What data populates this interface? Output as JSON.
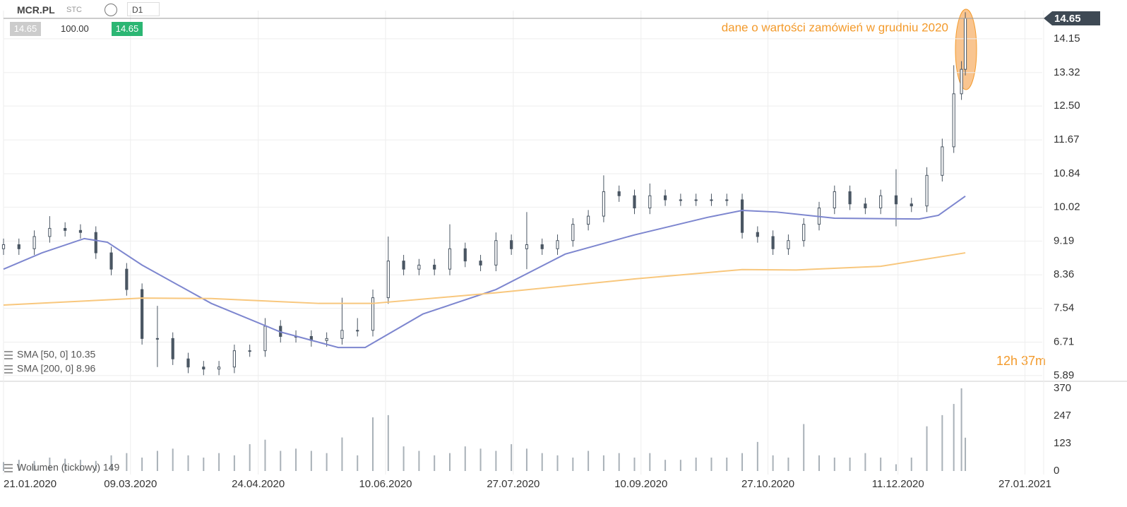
{
  "toolbar": {
    "symbol": "MCR.PL",
    "market": "STC",
    "timeframe": "D1",
    "bid": "14.65",
    "lot": "100.00",
    "ask": "14.65"
  },
  "countdown": "12h 37m",
  "chart_data": [
    {
      "type": "candlestick",
      "annotation": "dane o wartości zamówień w grudniu 2020",
      "last_price": 14.65,
      "up_color": "#ffffff",
      "down_color": "#4a5663",
      "x": [
        0,
        4,
        8,
        12,
        16,
        20,
        24,
        28,
        32,
        36,
        40,
        44,
        48,
        52,
        56,
        60,
        64,
        68,
        72,
        76,
        80,
        84,
        88,
        92,
        96,
        100,
        104,
        108,
        112,
        116,
        120,
        124,
        128,
        132,
        136,
        140,
        144,
        148,
        152,
        156,
        160,
        164,
        168,
        172,
        176,
        180,
        184,
        188,
        192,
        196,
        200,
        204,
        208,
        212,
        216,
        220,
        224,
        228,
        232,
        236,
        240,
        244,
        247,
        249,
        250
      ],
      "open": [
        9.0,
        9.1,
        9.0,
        9.3,
        9.5,
        9.45,
        9.4,
        8.9,
        8.5,
        8.0,
        6.8,
        6.8,
        6.3,
        6.1,
        6.05,
        6.1,
        6.5,
        6.5,
        7.1,
        6.85,
        6.85,
        6.75,
        6.8,
        7.0,
        7.0,
        7.8,
        8.7,
        8.5,
        8.6,
        8.5,
        9.0,
        8.7,
        8.6,
        9.2,
        9.0,
        9.1,
        9.0,
        9.2,
        9.6,
        9.8,
        10.4,
        10.3,
        10.0,
        10.3,
        10.2,
        10.2,
        10.2,
        10.2,
        10.2,
        9.4,
        9.3,
        9.0,
        9.2,
        9.6,
        10.0,
        10.4,
        10.1,
        10.0,
        10.3,
        10.1,
        10.05,
        10.8,
        11.5,
        12.8,
        13.4
      ],
      "high": [
        9.25,
        9.25,
        9.45,
        9.8,
        9.65,
        9.6,
        9.55,
        9.05,
        8.65,
        8.15,
        7.6,
        6.95,
        6.45,
        6.25,
        6.25,
        6.65,
        6.65,
        7.3,
        7.25,
        7.0,
        7.0,
        6.95,
        7.8,
        7.3,
        8.0,
        9.3,
        8.85,
        8.75,
        8.75,
        9.6,
        9.15,
        8.85,
        9.4,
        9.35,
        9.9,
        9.25,
        9.35,
        9.75,
        9.95,
        10.8,
        10.55,
        10.45,
        10.6,
        10.45,
        10.35,
        10.35,
        10.35,
        10.35,
        10.35,
        9.55,
        9.45,
        9.35,
        9.75,
        10.15,
        10.55,
        10.55,
        10.25,
        10.45,
        10.95,
        10.25,
        11.0,
        11.7,
        13.5,
        13.6,
        14.8
      ],
      "low": [
        8.85,
        8.85,
        8.85,
        9.15,
        9.3,
        9.25,
        8.75,
        8.35,
        7.85,
        6.65,
        6.1,
        6.15,
        5.95,
        5.9,
        5.9,
        5.95,
        6.35,
        6.35,
        6.7,
        6.7,
        6.6,
        6.6,
        6.65,
        6.85,
        6.85,
        7.65,
        8.35,
        8.35,
        8.35,
        8.35,
        8.55,
        8.45,
        8.45,
        8.85,
        8.5,
        8.85,
        8.85,
        9.05,
        9.45,
        9.65,
        10.15,
        9.85,
        9.85,
        10.05,
        10.05,
        10.05,
        10.05,
        10.05,
        9.25,
        9.15,
        8.85,
        8.85,
        9.05,
        9.45,
        9.85,
        9.95,
        9.85,
        9.85,
        9.55,
        9.9,
        9.9,
        10.65,
        11.35,
        12.65,
        13.25
      ],
      "close": [
        9.1,
        9.0,
        9.3,
        9.5,
        9.45,
        9.4,
        8.9,
        8.5,
        8.0,
        6.8,
        6.8,
        6.3,
        6.1,
        6.05,
        6.1,
        6.5,
        6.5,
        7.1,
        6.85,
        6.85,
        6.75,
        6.8,
        7.0,
        7.0,
        7.8,
        8.7,
        8.5,
        8.6,
        8.5,
        9.0,
        8.7,
        8.6,
        9.2,
        9.0,
        9.1,
        9.0,
        9.2,
        9.6,
        9.8,
        10.4,
        10.3,
        10.0,
        10.3,
        10.2,
        10.2,
        10.2,
        10.2,
        10.2,
        9.4,
        9.3,
        9.0,
        9.2,
        9.6,
        10.0,
        10.4,
        10.1,
        10.0,
        10.3,
        10.1,
        10.05,
        10.8,
        11.5,
        12.8,
        13.4,
        14.65
      ],
      "lines": [
        {
          "name": "SMA [50, 0] 10.35",
          "color": "#7d86cf",
          "x": [
            0,
            10,
            21,
            27,
            36,
            54,
            72,
            87,
            94,
            109,
            128,
            146,
            164,
            183,
            192,
            201,
            216,
            238,
            243,
            250
          ],
          "values": [
            8.5,
            8.9,
            9.25,
            9.16,
            8.6,
            7.66,
            6.96,
            6.58,
            6.58,
            7.4,
            8.0,
            8.87,
            9.34,
            9.77,
            9.94,
            9.9,
            9.75,
            9.73,
            9.82,
            10.29
          ]
        },
        {
          "name": "SMA [200, 0] 8.96",
          "color": "#f8c77d",
          "x": [
            0,
            36,
            54,
            82,
            96,
            128,
            164,
            192,
            206,
            228,
            250
          ],
          "values": [
            7.62,
            7.79,
            7.78,
            7.66,
            7.66,
            7.92,
            8.26,
            8.49,
            8.48,
            8.57,
            8.9
          ]
        }
      ],
      "xlim": [
        0,
        270
      ],
      "ylim": [
        5.75,
        14.84
      ],
      "yticks": [
        5.89,
        6.71,
        7.54,
        8.36,
        9.19,
        10.02,
        10.84,
        11.67,
        {
          "value": 12.5,
          "label": "12.50"
        },
        13.32,
        14.15
      ],
      "xticks": [
        {
          "value": 0,
          "label": "21.01.2020"
        },
        {
          "value": 33,
          "label": "09.03.2020"
        },
        {
          "value": 66.2,
          "label": "24.04.2020"
        },
        {
          "value": 99.3,
          "label": "10.06.2020"
        },
        {
          "value": 132.5,
          "label": "27.07.2020"
        },
        {
          "value": 165.7,
          "label": "10.09.2020"
        },
        {
          "value": 198.7,
          "label": "27.10.2020"
        },
        {
          "value": 232.5,
          "label": "11.12.2020"
        },
        {
          "value": 265.5,
          "label": "27.01.2021"
        }
      ],
      "grid": true
    },
    {
      "type": "bar",
      "name": "Wolumen (tickowy) 149",
      "color": "#a9b1b8",
      "x": [
        0,
        4,
        8,
        12,
        16,
        20,
        24,
        28,
        32,
        36,
        40,
        44,
        48,
        52,
        56,
        60,
        64,
        68,
        72,
        76,
        80,
        84,
        88,
        92,
        96,
        100,
        104,
        108,
        112,
        116,
        120,
        124,
        128,
        132,
        136,
        140,
        144,
        148,
        152,
        156,
        160,
        164,
        168,
        172,
        176,
        180,
        184,
        188,
        192,
        196,
        200,
        204,
        208,
        212,
        216,
        220,
        224,
        228,
        232,
        236,
        240,
        244,
        247,
        249,
        250
      ],
      "values": [
        40,
        50,
        45,
        60,
        55,
        50,
        45,
        70,
        80,
        60,
        90,
        100,
        70,
        60,
        80,
        70,
        120,
        140,
        90,
        100,
        90,
        80,
        150,
        70,
        240,
        250,
        110,
        90,
        70,
        80,
        110,
        100,
        90,
        120,
        100,
        80,
        70,
        60,
        90,
        70,
        80,
        60,
        80,
        50,
        50,
        60,
        60,
        60,
        80,
        130,
        70,
        60,
        210,
        70,
        60,
        60,
        80,
        60,
        30,
        60,
        200,
        250,
        300,
        370,
        149
      ],
      "xlim": [
        0,
        270
      ],
      "ylim": [
        0,
        395
      ],
      "yticks": [
        0,
        123,
        247,
        370
      ]
    }
  ]
}
